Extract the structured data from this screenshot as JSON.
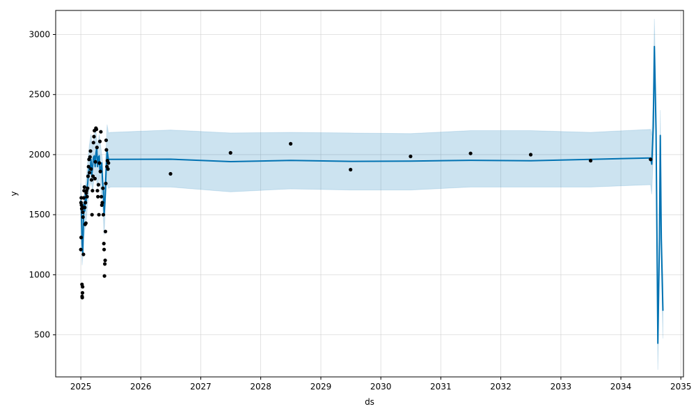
{
  "chart_data": {
    "type": "line",
    "title": "",
    "xlabel": "ds",
    "ylabel": "y",
    "xlim": [
      "2024-08-01",
      "2035-01-17"
    ],
    "ylim": [
      150,
      3200
    ],
    "x_ticks": [
      "2025",
      "2026",
      "2027",
      "2028",
      "2029",
      "2030",
      "2031",
      "2032",
      "2033",
      "2034",
      "2035"
    ],
    "y_ticks": [
      500,
      1000,
      1500,
      2000,
      2500,
      3000
    ],
    "grid": true,
    "colors": {
      "forecast": "#0072B2",
      "interval": "#0072B2",
      "observed": "#000000",
      "grid": "#cccccc"
    },
    "series": [
      {
        "role": "observed",
        "kind": "scatter",
        "points": [
          [
            "2025-01-01",
            1210
          ],
          [
            "2025-01-02",
            1600
          ],
          [
            "2025-01-03",
            1310
          ],
          [
            "2025-01-04",
            1640
          ],
          [
            "2025-01-05",
            1580
          ],
          [
            "2025-01-07",
            1550
          ],
          [
            "2025-01-08",
            920
          ],
          [
            "2025-01-09",
            820
          ],
          [
            "2025-01-10",
            810
          ],
          [
            "2025-01-11",
            850
          ],
          [
            "2025-01-12",
            900
          ],
          [
            "2025-01-13",
            1520
          ],
          [
            "2025-01-14",
            1480
          ],
          [
            "2025-01-15",
            1560
          ],
          [
            "2025-01-17",
            1170
          ],
          [
            "2025-01-19",
            1640
          ],
          [
            "2025-01-21",
            1700
          ],
          [
            "2025-01-23",
            1730
          ],
          [
            "2025-01-25",
            1560
          ],
          [
            "2025-01-27",
            1420
          ],
          [
            "2025-01-29",
            1600
          ],
          [
            "2025-02-01",
            1430
          ],
          [
            "2025-02-03",
            1680
          ],
          [
            "2025-02-05",
            1700
          ],
          [
            "2025-02-08",
            1650
          ],
          [
            "2025-02-11",
            1720
          ],
          [
            "2025-02-14",
            1820
          ],
          [
            "2025-02-17",
            1900
          ],
          [
            "2025-02-20",
            1960
          ],
          [
            "2025-02-23",
            1850
          ],
          [
            "2025-02-26",
            1980
          ],
          [
            "2025-03-01",
            2030
          ],
          [
            "2025-03-04",
            1880
          ],
          [
            "2025-03-07",
            1790
          ],
          [
            "2025-03-10",
            1500
          ],
          [
            "2025-03-13",
            1700
          ],
          [
            "2025-03-16",
            1820
          ],
          [
            "2025-03-19",
            2100
          ],
          [
            "2025-03-22",
            2150
          ],
          [
            "2025-03-25",
            2200
          ],
          [
            "2025-03-28",
            1800
          ],
          [
            "2025-03-31",
            1940
          ],
          [
            "2025-04-03",
            2220
          ],
          [
            "2025-04-06",
            2210
          ],
          [
            "2025-04-09",
            2060
          ],
          [
            "2025-04-12",
            1700
          ],
          [
            "2025-04-15",
            1650
          ],
          [
            "2025-04-18",
            1750
          ],
          [
            "2025-04-21",
            1500
          ],
          [
            "2025-04-24",
            1930
          ],
          [
            "2025-04-27",
            2110
          ],
          [
            "2025-04-30",
            1860
          ],
          [
            "2025-05-03",
            2190
          ],
          [
            "2025-05-06",
            1650
          ],
          [
            "2025-05-09",
            1580
          ],
          [
            "2025-05-12",
            1600
          ],
          [
            "2025-05-15",
            1720
          ],
          [
            "2025-05-18",
            1500
          ],
          [
            "2025-05-21",
            1260
          ],
          [
            "2025-05-23",
            1210
          ],
          [
            "2025-05-25",
            990
          ],
          [
            "2025-05-27",
            1090
          ],
          [
            "2025-05-29",
            1120
          ],
          [
            "2025-05-31",
            1360
          ],
          [
            "2025-06-02",
            1760
          ],
          [
            "2025-06-04",
            2120
          ],
          [
            "2025-06-06",
            2040
          ],
          [
            "2025-06-09",
            1900
          ],
          [
            "2025-06-12",
            1950
          ],
          [
            "2025-06-15",
            1880
          ],
          [
            "2025-06-18",
            1930
          ],
          [
            "2026-07-01",
            1840
          ],
          [
            "2027-07-01",
            2015
          ],
          [
            "2028-07-01",
            2090
          ],
          [
            "2029-07-01",
            1875
          ],
          [
            "2030-07-01",
            1985
          ],
          [
            "2031-07-01",
            2010
          ],
          [
            "2032-07-01",
            2000
          ],
          [
            "2033-07-01",
            1950
          ],
          [
            "2034-07-01",
            1960
          ]
        ]
      },
      {
        "role": "forecast",
        "kind": "line",
        "points": [
          [
            "2025-01-01",
            1620
          ],
          [
            "2025-01-05",
            1500
          ],
          [
            "2025-01-09",
            1250
          ],
          [
            "2025-01-13",
            1180
          ],
          [
            "2025-01-17",
            1440
          ],
          [
            "2025-01-21",
            1600
          ],
          [
            "2025-01-25",
            1530
          ],
          [
            "2025-01-29",
            1680
          ],
          [
            "2025-02-02",
            1600
          ],
          [
            "2025-02-07",
            1720
          ],
          [
            "2025-02-12",
            1760
          ],
          [
            "2025-02-17",
            1850
          ],
          [
            "2025-02-22",
            1900
          ],
          [
            "2025-02-27",
            1880
          ],
          [
            "2025-03-04",
            1960
          ],
          [
            "2025-03-09",
            1830
          ],
          [
            "2025-03-14",
            1900
          ],
          [
            "2025-03-19",
            1980
          ],
          [
            "2025-03-24",
            1990
          ],
          [
            "2025-03-29",
            1900
          ],
          [
            "2025-04-03",
            2010
          ],
          [
            "2025-04-08",
            2060
          ],
          [
            "2025-04-13",
            1900
          ],
          [
            "2025-04-18",
            1980
          ],
          [
            "2025-04-23",
            1990
          ],
          [
            "2025-04-28",
            1850
          ],
          [
            "2025-05-03",
            1880
          ],
          [
            "2025-05-08",
            1930
          ],
          [
            "2025-05-13",
            1780
          ],
          [
            "2025-05-18",
            1700
          ],
          [
            "2025-05-23",
            1500
          ],
          [
            "2025-05-28",
            1610
          ],
          [
            "2025-06-03",
            1830
          ],
          [
            "2025-06-10",
            2030
          ],
          [
            "2025-06-18",
            1960
          ],
          [
            "2026-07-01",
            1962
          ],
          [
            "2027-07-01",
            1942
          ],
          [
            "2028-07-01",
            1952
          ],
          [
            "2029-07-01",
            1944
          ],
          [
            "2030-07-01",
            1946
          ],
          [
            "2031-07-01",
            1953
          ],
          [
            "2032-07-01",
            1949
          ],
          [
            "2033-07-01",
            1961
          ],
          [
            "2034-07-01",
            1972
          ],
          [
            "2034-07-08",
            1920
          ],
          [
            "2034-07-17",
            2230
          ],
          [
            "2034-07-24",
            2900
          ],
          [
            "2034-08-03",
            2200
          ],
          [
            "2034-08-14",
            430
          ],
          [
            "2034-08-24",
            1300
          ],
          [
            "2034-08-29",
            2160
          ],
          [
            "2034-09-04",
            1300
          ],
          [
            "2034-09-14",
            700
          ]
        ]
      },
      {
        "role": "uncertainty_interval",
        "kind": "area",
        "upper": [
          [
            "2025-01-01",
            1760
          ],
          [
            "2025-01-09",
            1420
          ],
          [
            "2025-01-17",
            1620
          ],
          [
            "2025-01-25",
            1700
          ],
          [
            "2025-02-02",
            1780
          ],
          [
            "2025-02-12",
            1940
          ],
          [
            "2025-02-22",
            2080
          ],
          [
            "2025-03-04",
            2170
          ],
          [
            "2025-03-14",
            2050
          ],
          [
            "2025-03-24",
            2170
          ],
          [
            "2025-04-03",
            2200
          ],
          [
            "2025-04-13",
            2070
          ],
          [
            "2025-04-23",
            2170
          ],
          [
            "2025-05-03",
            2060
          ],
          [
            "2025-05-13",
            1950
          ],
          [
            "2025-05-23",
            1680
          ],
          [
            "2025-06-03",
            2020
          ],
          [
            "2025-06-10",
            2250
          ],
          [
            "2025-06-18",
            2180
          ],
          [
            "2025-07-01",
            2185
          ],
          [
            "2026-07-01",
            2205
          ],
          [
            "2027-07-01",
            2180
          ],
          [
            "2028-07-01",
            2185
          ],
          [
            "2029-07-01",
            2180
          ],
          [
            "2030-07-01",
            2175
          ],
          [
            "2031-07-01",
            2200
          ],
          [
            "2032-07-01",
            2200
          ],
          [
            "2033-07-01",
            2185
          ],
          [
            "2034-07-01",
            2210
          ],
          [
            "2034-07-08",
            2160
          ],
          [
            "2034-07-17",
            2480
          ],
          [
            "2034-07-24",
            3130
          ],
          [
            "2034-08-03",
            2430
          ],
          [
            "2034-08-14",
            640
          ],
          [
            "2034-08-24",
            1520
          ],
          [
            "2034-08-29",
            2370
          ],
          [
            "2034-09-04",
            1520
          ],
          [
            "2034-09-14",
            920
          ]
        ],
        "lower": [
          [
            "2025-01-01",
            1480
          ],
          [
            "2025-01-09",
            1080
          ],
          [
            "2025-01-17",
            1280
          ],
          [
            "2025-01-25",
            1370
          ],
          [
            "2025-02-02",
            1440
          ],
          [
            "2025-02-12",
            1590
          ],
          [
            "2025-02-22",
            1720
          ],
          [
            "2025-03-04",
            1780
          ],
          [
            "2025-03-14",
            1700
          ],
          [
            "2025-03-24",
            1820
          ],
          [
            "2025-04-03",
            1830
          ],
          [
            "2025-04-13",
            1720
          ],
          [
            "2025-04-23",
            1830
          ],
          [
            "2025-05-03",
            1700
          ],
          [
            "2025-05-13",
            1600
          ],
          [
            "2025-05-23",
            1330
          ],
          [
            "2025-06-03",
            1650
          ],
          [
            "2025-06-10",
            1770
          ],
          [
            "2025-06-18",
            1720
          ],
          [
            "2025-07-01",
            1730
          ],
          [
            "2026-07-01",
            1730
          ],
          [
            "2027-07-01",
            1690
          ],
          [
            "2028-07-01",
            1715
          ],
          [
            "2029-07-01",
            1705
          ],
          [
            "2030-07-01",
            1705
          ],
          [
            "2031-07-01",
            1730
          ],
          [
            "2032-07-01",
            1730
          ],
          [
            "2033-07-01",
            1730
          ],
          [
            "2034-07-01",
            1750
          ],
          [
            "2034-07-08",
            1670
          ],
          [
            "2034-07-17",
            2000
          ],
          [
            "2034-07-24",
            2680
          ],
          [
            "2034-08-03",
            1970
          ],
          [
            "2034-08-14",
            210
          ],
          [
            "2034-08-24",
            1080
          ],
          [
            "2034-08-29",
            1950
          ],
          [
            "2034-09-04",
            1080
          ],
          [
            "2034-09-14",
            470
          ]
        ]
      }
    ]
  }
}
